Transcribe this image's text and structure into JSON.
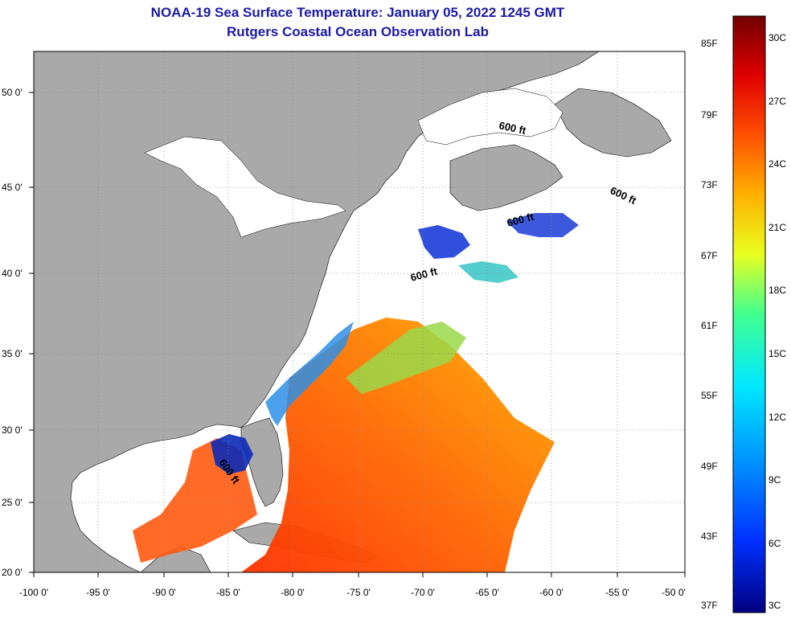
{
  "title": {
    "line1": "NOAA-19 Sea Surface Temperature:  January 05, 2022 1245 GMT",
    "line2": "Rutgers Coastal Ocean Observation Lab"
  },
  "axes": {
    "lon_ticks": [
      "-100 0'",
      "-95 0'",
      "-90 0'",
      "-85 0'",
      "-80 0'",
      "-75 0'",
      "-70 0'",
      "-65 0'",
      "-60 0'",
      "-55 0'",
      "-50 0'"
    ],
    "lat_ticks": [
      "50 0'",
      "45 0'",
      "40 0'",
      "35 0'",
      "30 0'",
      "25 0'",
      "20 0'"
    ]
  },
  "contour_labels": [
    "600 ft",
    "600 ft",
    "600 ft",
    "600 ft",
    "600 ft"
  ],
  "colorbar": {
    "fahrenheit": [
      "85F",
      "79F",
      "73F",
      "67F",
      "61F",
      "55F",
      "49F",
      "43F",
      "37F"
    ],
    "celsius": [
      "30C",
      "27C",
      "24C",
      "21C",
      "18C",
      "15C",
      "12C",
      "9C",
      "6C",
      "3C"
    ],
    "colors": [
      "#7a0000",
      "#d40000",
      "#ff3a00",
      "#ff8c00",
      "#ffe000",
      "#c8ff30",
      "#40ff90",
      "#00e8ff",
      "#0090ff",
      "#0030ff",
      "#0000a8"
    ]
  },
  "colors": {
    "land": "#a9a9a9",
    "ocean_no_data": "#ffffff",
    "title": "#1a1aa8"
  }
}
